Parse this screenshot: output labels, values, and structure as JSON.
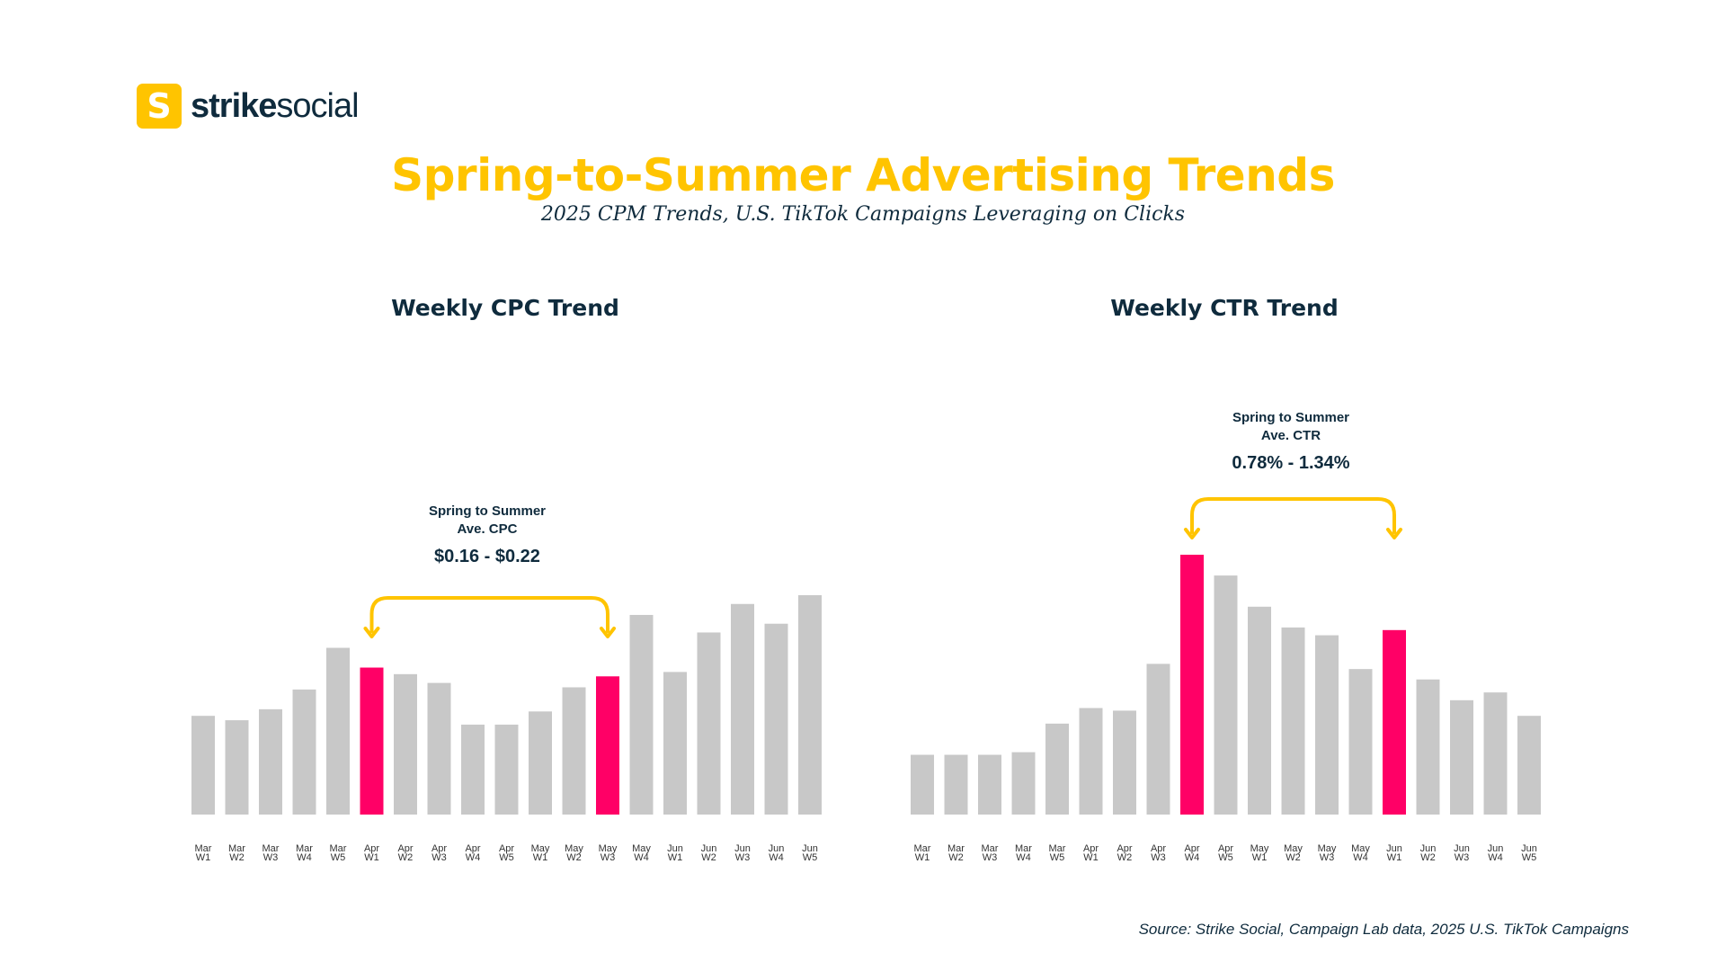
{
  "logo": {
    "icon": "S",
    "text_bold": "strike",
    "text_regular": "social"
  },
  "title": "Spring-to-Summer Advertising Trends",
  "subtitle": "2025 CPM Trends, U.S. TikTok Campaigns Leveraging on Clicks",
  "source": "Source: Strike Social, Campaign Lab data, 2025 U.S. TikTok Campaigns",
  "colors": {
    "accent": "#FFC400",
    "highlight": "#FF0066",
    "bar": "#C8C8C8",
    "text": "#0F2B3D"
  },
  "chart_data": [
    {
      "type": "bar",
      "title": "Weekly CPC Trend",
      "categories": [
        "Mar W1",
        "Mar W2",
        "Mar W3",
        "Mar W4",
        "Mar W5",
        "Apr W1",
        "Apr W2",
        "Apr W3",
        "Apr W4",
        "Apr W5",
        "May W1",
        "May W2",
        "May W3",
        "May W4",
        "Jun W1",
        "Jun W2",
        "Jun W3",
        "Jun W4",
        "Jun W5"
      ],
      "values_relative": [
        45,
        43,
        48,
        57,
        76,
        67,
        64,
        60,
        41,
        41,
        47,
        58,
        63,
        91,
        65,
        83,
        96,
        87,
        100
      ],
      "highlighted": [
        "Apr W1",
        "May W3"
      ],
      "axis_visible": false,
      "grid": false,
      "annotation": {
        "line1": "Spring to Summer",
        "line2": "Ave. CPC",
        "range": "$0.16 - $0.22",
        "from": "Apr W1",
        "to": "May W3"
      }
    },
    {
      "type": "bar",
      "title": "Weekly CTR Trend",
      "categories": [
        "Mar W1",
        "Mar W2",
        "Mar W3",
        "Mar W4",
        "Mar W5",
        "Apr W1",
        "Apr W2",
        "Apr W3",
        "Apr W4",
        "Apr W5",
        "May W1",
        "May W2",
        "May W3",
        "May W4",
        "Jun W1",
        "Jun W2",
        "Jun W3",
        "Jun W4",
        "Jun W5"
      ],
      "values_relative": [
        23,
        23,
        23,
        24,
        35,
        41,
        40,
        58,
        100,
        92,
        80,
        72,
        69,
        56,
        71,
        52,
        44,
        47,
        38
      ],
      "highlighted": [
        "Apr W4",
        "Jun W1"
      ],
      "axis_visible": false,
      "grid": false,
      "annotation": {
        "line1": "Spring to Summer",
        "line2": "Ave. CTR",
        "range": "0.78% - 1.34%",
        "from": "Apr W4",
        "to": "Jun W1"
      }
    }
  ]
}
